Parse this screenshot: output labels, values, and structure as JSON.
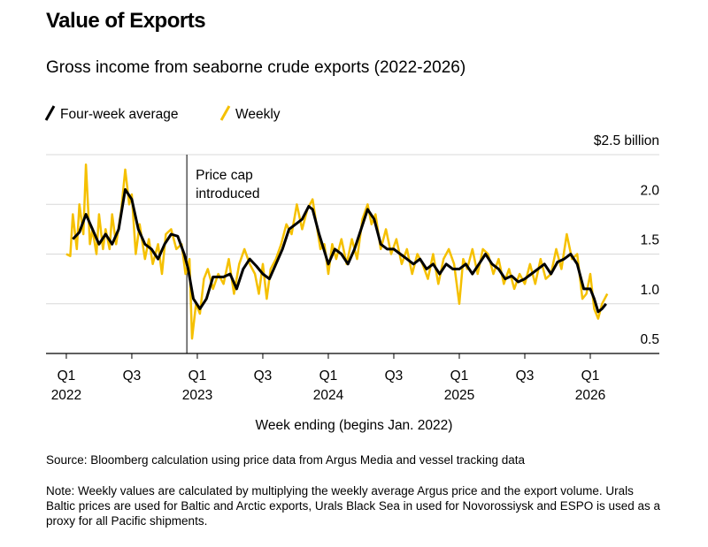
{
  "chart_data": {
    "type": "line",
    "title": "Value of Exports",
    "subtitle": "Gross income from seaborne crude exports (2022-2026)",
    "x_label": "Week ending (begins Jan. 2022)",
    "source": "Source: Bloomberg calculation using price data from Argus Media and vessel tracking data",
    "note": "Note: Weekly values are calculated by multiplying the weekly average Argus price and the export volume. Urals Baltic prices are used for Baltic and Arctic exports, Urals Black Sea in used for Novorossiysk and ESPO is used as a proxy for all Pacific shipments.",
    "annotation": {
      "x": 2022.92,
      "lines": [
        "Price cap",
        "introduced"
      ]
    },
    "xlim": [
      2021.845,
      2026.527
    ],
    "xticks": [
      {
        "value": 2022.0,
        "label": "Q1 2022"
      },
      {
        "value": 2022.5,
        "label": "Q3"
      },
      {
        "value": 2023.0,
        "label": "Q1 2023"
      },
      {
        "value": 2023.5,
        "label": "Q3"
      },
      {
        "value": 2024.0,
        "label": "Q1 2024"
      },
      {
        "value": 2024.5,
        "label": "Q3"
      },
      {
        "value": 2025.0,
        "label": "Q1 2025"
      },
      {
        "value": 2025.5,
        "label": "Q3"
      },
      {
        "value": 2026.0,
        "label": "Q1 2026"
      }
    ],
    "ylim": [
      0.5,
      2.5
    ],
    "yticks": [
      0.5,
      {
        "value": 1.0,
        "label": "1.0"
      },
      1.5,
      {
        "value": 2.0,
        "label": "2.0"
      },
      {
        "value": 2.5,
        "label": "$2.5 billion"
      }
    ],
    "grid": true,
    "series": [
      {
        "name": "Weekly",
        "color": "#f5c000",
        "x": [
          2022.0,
          2022.03,
          2022.05,
          2022.08,
          2022.1,
          2022.13,
          2022.15,
          2022.18,
          2022.2,
          2022.23,
          2022.25,
          2022.28,
          2022.3,
          2022.33,
          2022.35,
          2022.38,
          2022.42,
          2022.45,
          2022.48,
          2022.5,
          2022.53,
          2022.56,
          2022.6,
          2022.63,
          2022.66,
          2022.7,
          2022.73,
          2022.76,
          2022.8,
          2022.84,
          2022.88,
          2022.91,
          2022.94,
          2022.96,
          2022.99,
          2023.02,
          2023.05,
          2023.08,
          2023.12,
          2023.16,
          2023.2,
          2023.24,
          2023.28,
          2023.32,
          2023.36,
          2023.4,
          2023.44,
          2023.47,
          2023.5,
          2023.53,
          2023.56,
          2023.6,
          2023.64,
          2023.68,
          2023.72,
          2023.76,
          2023.8,
          2023.84,
          2023.88,
          2023.91,
          2023.94,
          2023.97,
          2024.0,
          2024.03,
          2024.06,
          2024.1,
          2024.14,
          2024.18,
          2024.22,
          2024.26,
          2024.3,
          2024.33,
          2024.36,
          2024.4,
          2024.44,
          2024.48,
          2024.52,
          2024.56,
          2024.6,
          2024.64,
          2024.68,
          2024.72,
          2024.76,
          2024.8,
          2024.84,
          2024.88,
          2024.92,
          2024.96,
          2025.0,
          2025.03,
          2025.06,
          2025.1,
          2025.14,
          2025.18,
          2025.22,
          2025.26,
          2025.3,
          2025.34,
          2025.38,
          2025.42,
          2025.46,
          2025.5,
          2025.54,
          2025.58,
          2025.62,
          2025.66,
          2025.7,
          2025.74,
          2025.78,
          2025.82,
          2025.86,
          2025.9,
          2025.94,
          2025.97,
          2026.0,
          2026.03,
          2026.06,
          2026.09,
          2026.13
        ],
        "values": [
          1.5,
          1.48,
          1.9,
          1.55,
          2.0,
          1.7,
          2.4,
          1.6,
          1.75,
          1.5,
          1.9,
          1.55,
          1.75,
          1.55,
          1.9,
          1.6,
          1.95,
          2.35,
          2.0,
          2.1,
          1.5,
          1.8,
          1.45,
          1.65,
          1.4,
          1.6,
          1.3,
          1.7,
          1.75,
          1.55,
          1.6,
          1.3,
          1.45,
          0.65,
          1.0,
          0.9,
          1.25,
          1.35,
          1.15,
          1.3,
          1.2,
          1.45,
          1.1,
          1.4,
          1.55,
          1.4,
          1.3,
          1.1,
          1.4,
          1.05,
          1.35,
          1.45,
          1.6,
          1.8,
          1.7,
          2.0,
          1.75,
          1.95,
          2.05,
          1.8,
          1.55,
          1.6,
          1.3,
          1.6,
          1.45,
          1.65,
          1.4,
          1.65,
          1.45,
          1.85,
          2.0,
          1.8,
          1.9,
          1.55,
          1.75,
          1.5,
          1.65,
          1.4,
          1.55,
          1.3,
          1.5,
          1.4,
          1.25,
          1.5,
          1.2,
          1.45,
          1.55,
          1.4,
          1.0,
          1.45,
          1.35,
          1.55,
          1.3,
          1.55,
          1.5,
          1.3,
          1.45,
          1.2,
          1.35,
          1.15,
          1.3,
          1.2,
          1.4,
          1.2,
          1.45,
          1.25,
          1.3,
          1.55,
          1.35,
          1.7,
          1.45,
          1.5,
          1.05,
          1.1,
          1.3,
          0.95,
          0.85,
          1.0,
          1.1
        ]
      },
      {
        "name": "Four-week average",
        "color": "#000000",
        "x": [
          2022.05,
          2022.1,
          2022.15,
          2022.2,
          2022.25,
          2022.3,
          2022.35,
          2022.4,
          2022.45,
          2022.5,
          2022.55,
          2022.6,
          2022.65,
          2022.7,
          2022.75,
          2022.8,
          2022.85,
          2022.9,
          2022.93,
          2022.97,
          2023.02,
          2023.07,
          2023.12,
          2023.2,
          2023.25,
          2023.3,
          2023.35,
          2023.4,
          2023.45,
          2023.5,
          2023.55,
          2023.6,
          2023.65,
          2023.7,
          2023.75,
          2023.8,
          2023.85,
          2023.88,
          2023.93,
          2024.0,
          2024.05,
          2024.1,
          2024.15,
          2024.2,
          2024.25,
          2024.3,
          2024.35,
          2024.4,
          2024.45,
          2024.5,
          2024.55,
          2024.6,
          2024.65,
          2024.7,
          2024.75,
          2024.8,
          2024.85,
          2024.9,
          2024.95,
          2025.0,
          2025.05,
          2025.1,
          2025.15,
          2025.2,
          2025.25,
          2025.3,
          2025.35,
          2025.4,
          2025.45,
          2025.5,
          2025.55,
          2025.6,
          2025.65,
          2025.7,
          2025.75,
          2025.8,
          2025.85,
          2025.9,
          2025.95,
          2026.0,
          2026.03,
          2026.06,
          2026.09,
          2026.12
        ],
        "values": [
          1.65,
          1.72,
          1.9,
          1.75,
          1.6,
          1.7,
          1.6,
          1.75,
          2.15,
          2.05,
          1.75,
          1.6,
          1.55,
          1.45,
          1.6,
          1.7,
          1.68,
          1.5,
          1.35,
          1.05,
          0.95,
          1.05,
          1.27,
          1.27,
          1.3,
          1.15,
          1.35,
          1.45,
          1.38,
          1.3,
          1.25,
          1.4,
          1.55,
          1.75,
          1.8,
          1.85,
          1.98,
          1.95,
          1.7,
          1.4,
          1.55,
          1.5,
          1.4,
          1.55,
          1.75,
          1.95,
          1.85,
          1.6,
          1.55,
          1.55,
          1.5,
          1.45,
          1.4,
          1.45,
          1.35,
          1.4,
          1.3,
          1.4,
          1.35,
          1.35,
          1.4,
          1.3,
          1.4,
          1.5,
          1.4,
          1.35,
          1.25,
          1.28,
          1.22,
          1.25,
          1.3,
          1.35,
          1.4,
          1.3,
          1.42,
          1.45,
          1.5,
          1.4,
          1.15,
          1.15,
          1.05,
          0.92,
          0.95,
          1.0
        ]
      }
    ]
  }
}
